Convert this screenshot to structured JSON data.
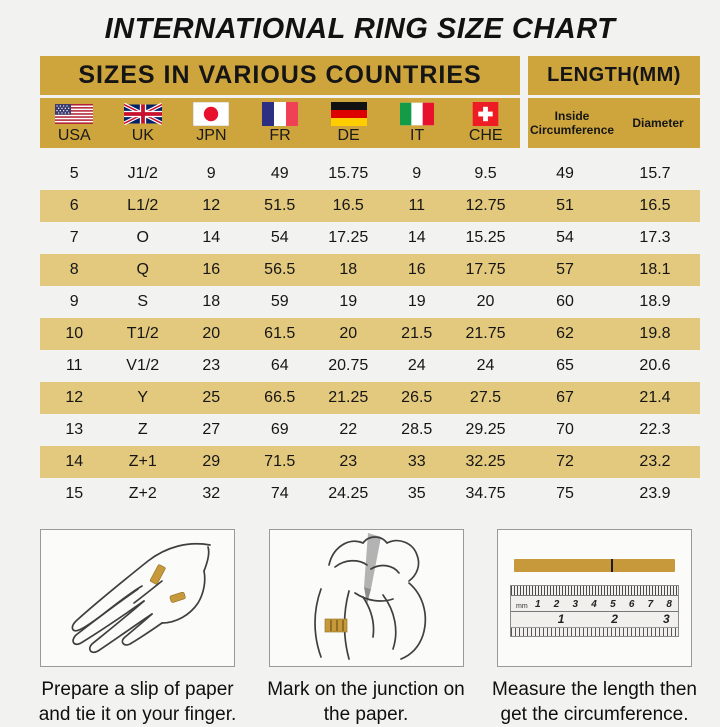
{
  "title": "INTERNATIONAL RING SIZE CHART",
  "colors": {
    "header_gold": "#CEA53C",
    "stripe_gold": "#E3C97D",
    "page_bg": "#F2F2F1",
    "paper_strip_gold": "#C8993B"
  },
  "header": {
    "countries_group_label": "SIZES IN VARIOUS COUNTRIES",
    "length_group_label": "LENGTH(MM)",
    "countries": [
      {
        "code": "USA",
        "icon": "usa-flag-icon"
      },
      {
        "code": "UK",
        "icon": "uk-flag-icon"
      },
      {
        "code": "JPN",
        "icon": "japan-flag-icon"
      },
      {
        "code": "FR",
        "icon": "france-flag-icon"
      },
      {
        "code": "DE",
        "icon": "germany-flag-icon"
      },
      {
        "code": "IT",
        "icon": "italy-flag-icon"
      },
      {
        "code": "CHE",
        "icon": "switzerland-flag-icon"
      }
    ],
    "length_columns": [
      "Inside Circumference",
      "Diameter"
    ]
  },
  "chart_data": {
    "type": "table",
    "title": "INTERNATIONAL RING SIZE CHART",
    "columns": [
      "USA",
      "UK",
      "JPN",
      "FR",
      "DE",
      "IT",
      "CHE",
      "Inside Circumference",
      "Diameter"
    ],
    "rows": [
      [
        "5",
        "J1/2",
        "9",
        "49",
        "15.75",
        "9",
        "9.5",
        "49",
        "15.7"
      ],
      [
        "6",
        "L1/2",
        "12",
        "51.5",
        "16.5",
        "11",
        "12.75",
        "51",
        "16.5"
      ],
      [
        "7",
        "O",
        "14",
        "54",
        "17.25",
        "14",
        "15.25",
        "54",
        "17.3"
      ],
      [
        "8",
        "Q",
        "16",
        "56.5",
        "18",
        "16",
        "17.75",
        "57",
        "18.1"
      ],
      [
        "9",
        "S",
        "18",
        "59",
        "19",
        "19",
        "20",
        "60",
        "18.9"
      ],
      [
        "10",
        "T1/2",
        "20",
        "61.5",
        "20",
        "21.5",
        "21.75",
        "62",
        "19.8"
      ],
      [
        "11",
        "V1/2",
        "23",
        "64",
        "20.75",
        "24",
        "24",
        "65",
        "20.6"
      ],
      [
        "12",
        "Y",
        "25",
        "66.5",
        "21.25",
        "26.5",
        "27.5",
        "67",
        "21.4"
      ],
      [
        "13",
        "Z",
        "27",
        "69",
        "22",
        "28.5",
        "29.25",
        "70",
        "22.3"
      ],
      [
        "14",
        "Z+1",
        "29",
        "71.5",
        "23",
        "33",
        "32.25",
        "72",
        "23.2"
      ],
      [
        "15",
        "Z+2",
        "32",
        "74",
        "24.25",
        "35",
        "34.75",
        "75",
        "23.9"
      ]
    ]
  },
  "instructions": [
    {
      "caption": "Prepare a slip of paper and tie it on your finger."
    },
    {
      "caption": "Mark on the junction on the paper."
    },
    {
      "caption": "Measure the length then get the circumference."
    }
  ],
  "ruler": {
    "unit_label": "mm",
    "cm_numbers": [
      "1",
      "2",
      "3",
      "4",
      "5",
      "6",
      "7",
      "8"
    ],
    "inch_numbers": [
      "1",
      "2",
      "3"
    ]
  }
}
